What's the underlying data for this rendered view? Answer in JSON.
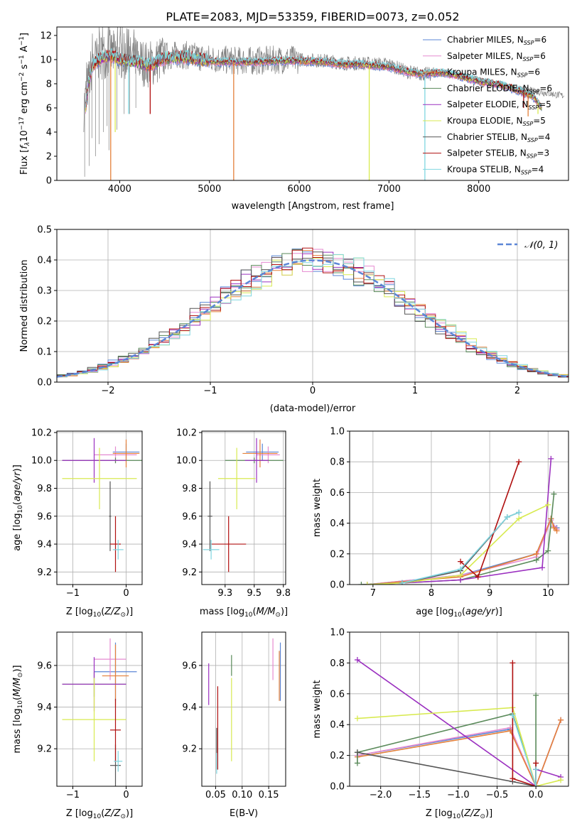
{
  "figure": {
    "title": "PLATE=2083, MJD=53359, FIBERID=0073, z=0.052"
  },
  "series_styles": [
    {
      "name": "Chabrier MILES",
      "label": "Chabrier MILES, N_SSP=6",
      "color": "#5b86d6"
    },
    {
      "name": "Salpeter MILES",
      "label": "Salpeter MILES, N_SSP=6",
      "color": "#e58ad0"
    },
    {
      "name": "Kroupa MILES",
      "label": "Kroupa MILES, N_SSP=6",
      "color": "#e4803a"
    },
    {
      "name": "Chabrier ELODIE",
      "label": "Chabrier ELODIE, N_SSP=6",
      "color": "#5a8a5a"
    },
    {
      "name": "Salpeter ELODIE",
      "label": "Salpeter ELODIE, N_SSP=5",
      "color": "#9b30c0"
    },
    {
      "name": "Kroupa ELODIE",
      "label": "Kroupa ELODIE, N_SSP=5",
      "color": "#d8ea50"
    },
    {
      "name": "Chabrier STELIB",
      "label": "Chabrier STELIB, N_SSP=4",
      "color": "#555555"
    },
    {
      "name": "Salpeter STELIB",
      "label": "Salpeter STELIB, N_SSP=3",
      "color": "#b01010"
    },
    {
      "name": "Kroupa STELIB",
      "label": "Kroupa STELIB, N_SSP=4",
      "color": "#7fd6e0"
    }
  ],
  "chart_data": [
    {
      "id": "spectrum",
      "type": "line",
      "title": "PLATE=2083, MJD=53359, FIBERID=0073, z=0.052",
      "xlabel": "wavelength [Angstrom, rest frame]",
      "ylabel": "Flux [f_λ10^-17 erg cm^-2 s^-1 A^-1]",
      "xlim": [
        3300,
        9000
      ],
      "ylim": [
        0,
        12.7
      ],
      "xticks": [
        4000,
        5000,
        6000,
        7000,
        8000
      ],
      "yticks": [
        0,
        2,
        4,
        6,
        8,
        10,
        12
      ],
      "grid": false,
      "legend": "top-right",
      "data_color": "#808080",
      "data": [
        [
          3600,
          6.0
        ],
        [
          3650,
          8.0
        ],
        [
          3700,
          9.8
        ],
        [
          3800,
          10.3
        ],
        [
          3900,
          10.5
        ],
        [
          4000,
          10.4
        ],
        [
          4100,
          10.0
        ],
        [
          4200,
          10.0
        ],
        [
          4300,
          9.6
        ],
        [
          4400,
          9.8
        ],
        [
          4500,
          10.3
        ],
        [
          4700,
          10.4
        ],
        [
          4900,
          10.2
        ],
        [
          5100,
          10.0
        ],
        [
          5300,
          9.9
        ],
        [
          5500,
          9.9
        ],
        [
          5800,
          10.0
        ],
        [
          6000,
          10.0
        ],
        [
          6300,
          9.9
        ],
        [
          6500,
          9.7
        ],
        [
          6700,
          9.7
        ],
        [
          7000,
          9.6
        ],
        [
          7200,
          9.0
        ],
        [
          7400,
          8.8
        ],
        [
          7600,
          8.8
        ],
        [
          7700,
          8.8
        ],
        [
          7900,
          8.5
        ],
        [
          8200,
          8.0
        ],
        [
          8500,
          7.5
        ],
        [
          8700,
          7.3
        ],
        [
          8950,
          7.0
        ]
      ],
      "model": [
        [
          3620,
          6.0
        ],
        [
          3650,
          8.0
        ],
        [
          3700,
          9.5
        ],
        [
          3800,
          10.2
        ],
        [
          3900,
          10.3
        ],
        [
          4000,
          10.0
        ],
        [
          4100,
          9.9
        ],
        [
          4200,
          9.8
        ],
        [
          4300,
          9.5
        ],
        [
          4400,
          9.7
        ],
        [
          4500,
          10.1
        ],
        [
          4700,
          10.2
        ],
        [
          4900,
          10.0
        ],
        [
          5100,
          9.8
        ],
        [
          5300,
          9.8
        ],
        [
          5500,
          9.8
        ],
        [
          5800,
          9.9
        ],
        [
          6000,
          9.9
        ],
        [
          6300,
          9.8
        ],
        [
          6500,
          9.6
        ],
        [
          6700,
          9.6
        ],
        [
          7000,
          9.4
        ],
        [
          7200,
          9.0
        ],
        [
          7400,
          8.8
        ],
        [
          7500,
          8.9
        ],
        [
          7600,
          8.9
        ],
        [
          7800,
          8.6
        ],
        [
          8000,
          8.2
        ],
        [
          8300,
          7.8
        ],
        [
          8600,
          7.0
        ],
        [
          8700,
          6.0
        ]
      ],
      "dips": [
        [
          3900,
          0.0
        ],
        [
          3950,
          4.0
        ],
        [
          4100,
          5.5
        ],
        [
          4340,
          5.5
        ],
        [
          5270,
          0.0
        ],
        [
          6780,
          0.0
        ],
        [
          7400,
          0.0
        ],
        [
          8500,
          6.0
        ],
        [
          8550,
          5.3
        ],
        [
          8660,
          5.5
        ]
      ]
    },
    {
      "id": "residuals",
      "type": "bar",
      "xlabel": "(data-model)/error",
      "ylabel": "Normed distribution",
      "xlim": [
        -2.5,
        2.5
      ],
      "ylim": [
        0,
        0.5
      ],
      "xticks": [
        -2,
        -1,
        0,
        1,
        2
      ],
      "yticks": [
        0.0,
        0.1,
        0.2,
        0.3,
        0.4,
        0.5
      ],
      "grid": true,
      "legend": "top-right",
      "legend_label": "N(0,1)",
      "legend_color": "#5b86d6",
      "bin_width": 0.1
    },
    {
      "id": "z-age",
      "type": "scatter",
      "xlabel": "Z [log10(Z/Z_sun)]",
      "ylabel": "age [log10(age/yr)]",
      "xlim": [
        -1.3,
        0.3
      ],
      "ylim": [
        9.11,
        10.21
      ],
      "xticks": [
        -1,
        0
      ],
      "yticks": [
        9.2,
        9.4,
        9.6,
        9.8,
        10.0,
        10.2
      ],
      "grid": true,
      "points": [
        {
          "series": "Chabrier MILES",
          "x": 0.0,
          "y": 10.06,
          "xerr": 0.25,
          "yerr": 0.06
        },
        {
          "series": "Salpeter MILES",
          "x": -0.2,
          "y": 10.04,
          "xerr": 0.4,
          "yerr": 0.06
        },
        {
          "series": "Kroupa MILES",
          "x": 0.0,
          "y": 10.05,
          "xerr": 0.25,
          "yerr": 0.1
        },
        {
          "series": "Chabrier ELODIE",
          "x": -0.2,
          "y": 10.0,
          "xerr": 1.0,
          "yerr": 0.02
        },
        {
          "series": "Salpeter ELODIE",
          "x": -0.6,
          "y": 10.0,
          "xerr": 0.6,
          "yerr": 0.16
        },
        {
          "series": "Kroupa ELODIE",
          "x": -0.5,
          "y": 9.87,
          "xerr": 0.7,
          "yerr": 0.22
        },
        {
          "series": "Chabrier STELIB",
          "x": -0.3,
          "y": 9.6,
          "xerr": 0.02,
          "yerr": 0.25
        },
        {
          "series": "Salpeter STELIB",
          "x": -0.2,
          "y": 9.4,
          "xerr": 0.1,
          "yerr": 0.2
        },
        {
          "series": "Kroupa STELIB",
          "x": -0.15,
          "y": 9.36,
          "xerr": 0.1,
          "yerr": 0.07
        }
      ]
    },
    {
      "id": "mass-age",
      "type": "scatter",
      "xlabel": "mass [log10(M/M_sun)]",
      "ylabel": "",
      "xlim": [
        9.05,
        9.77
      ],
      "ylim": [
        9.11,
        10.21
      ],
      "xticks": [
        9.25,
        9.5,
        9.75
      ],
      "yticks": [
        9.2,
        9.4,
        9.6,
        9.8,
        10.0,
        10.2
      ],
      "grid": true,
      "points": [
        {
          "series": "Chabrier MILES",
          "x": 9.57,
          "y": 10.06,
          "xerr": 0.14,
          "yerr": 0.06
        },
        {
          "series": "Salpeter MILES",
          "x": 9.62,
          "y": 10.04,
          "xerr": 0.1,
          "yerr": 0.06
        },
        {
          "series": "Kroupa MILES",
          "x": 9.55,
          "y": 10.05,
          "xerr": 0.15,
          "yerr": 0.1
        },
        {
          "series": "Chabrier ELODIE",
          "x": 9.5,
          "y": 10.0,
          "xerr": 0.25,
          "yerr": 0.02
        },
        {
          "series": "Salpeter ELODIE",
          "x": 9.52,
          "y": 10.0,
          "xerr": 0.1,
          "yerr": 0.16
        },
        {
          "series": "Kroupa ELODIE",
          "x": 9.35,
          "y": 9.87,
          "xerr": 0.16,
          "yerr": 0.22
        },
        {
          "series": "Chabrier STELIB",
          "x": 9.12,
          "y": 9.6,
          "xerr": 0.02,
          "yerr": 0.25
        },
        {
          "series": "Salpeter STELIB",
          "x": 9.28,
          "y": 9.4,
          "xerr": 0.15,
          "yerr": 0.2
        },
        {
          "series": "Kroupa STELIB",
          "x": 9.13,
          "y": 9.36,
          "xerr": 0.07,
          "yerr": 0.07
        }
      ]
    },
    {
      "id": "age-weight",
      "type": "line",
      "xlabel": "age [log10(age/yr)]",
      "ylabel": "mass weight",
      "xlim": [
        6.6,
        10.35
      ],
      "ylim": [
        0,
        1
      ],
      "xticks": [
        7,
        8,
        9,
        10
      ],
      "yticks": [
        0.0,
        0.2,
        0.4,
        0.6,
        0.8,
        1.0
      ],
      "grid": true,
      "series": [
        {
          "name": "Chabrier MILES",
          "x": [
            6.9,
            8.5,
            9.8,
            10.05,
            10.1,
            10.15
          ],
          "y": [
            0.0,
            0.06,
            0.2,
            0.43,
            0.38,
            0.37
          ]
        },
        {
          "name": "Salpeter MILES",
          "x": [
            6.9,
            8.5,
            9.8,
            10.05,
            10.1,
            10.15
          ],
          "y": [
            0.0,
            0.06,
            0.18,
            0.42,
            0.38,
            0.36
          ]
        },
        {
          "name": "Kroupa MILES",
          "x": [
            6.9,
            8.5,
            9.8,
            10.05,
            10.1,
            10.15
          ],
          "y": [
            0.0,
            0.05,
            0.2,
            0.43,
            0.37,
            0.35
          ]
        },
        {
          "name": "Chabrier ELODIE",
          "x": [
            6.8,
            7.5,
            8.5,
            9.8,
            10.0,
            10.1
          ],
          "y": [
            0.0,
            0.01,
            0.03,
            0.16,
            0.22,
            0.59
          ]
        },
        {
          "name": "Salpeter ELODIE",
          "x": [
            6.9,
            7.5,
            8.5,
            9.9,
            10.05
          ],
          "y": [
            0.0,
            0.01,
            0.03,
            0.11,
            0.82
          ]
        },
        {
          "name": "Kroupa ELODIE",
          "x": [
            6.9,
            7.5,
            8.5,
            9.5,
            10.0
          ],
          "y": [
            0.0,
            0.01,
            0.06,
            0.43,
            0.52
          ]
        },
        {
          "name": "Chabrier STELIB",
          "x": [
            7.5,
            8.5,
            9.3,
            9.5
          ],
          "y": [
            0.01,
            0.09,
            0.44,
            0.47
          ]
        },
        {
          "name": "Salpeter STELIB",
          "x": [
            8.5,
            8.8,
            9.5
          ],
          "y": [
            0.15,
            0.05,
            0.8
          ]
        },
        {
          "name": "Kroupa STELIB",
          "x": [
            7.5,
            8.5,
            9.3,
            9.5
          ],
          "y": [
            0.01,
            0.1,
            0.44,
            0.47
          ]
        }
      ]
    },
    {
      "id": "z-mass",
      "type": "scatter",
      "xlabel": "Z [log10(Z/Z_sun)]",
      "ylabel": "mass [log10(M/M_sun)]",
      "xlim": [
        -1.3,
        0.3
      ],
      "ylim": [
        9.02,
        9.76
      ],
      "xticks": [
        -1,
        0
      ],
      "yticks": [
        9.2,
        9.4,
        9.6
      ],
      "grid": true,
      "points": [
        {
          "series": "Chabrier MILES",
          "x": -0.2,
          "y": 9.57,
          "xerr": 0.4,
          "yerr": 0.14
        },
        {
          "series": "Salpeter MILES",
          "x": -0.3,
          "y": 9.63,
          "xerr": 0.3,
          "yerr": 0.1
        },
        {
          "series": "Kroupa MILES",
          "x": -0.2,
          "y": 9.55,
          "xerr": 0.25,
          "yerr": 0.15
        },
        {
          "series": "Chabrier ELODIE",
          "x": -0.6,
          "y": 9.51,
          "xerr": 0.6,
          "yerr": 0.06
        },
        {
          "series": "Salpeter ELODIE",
          "x": -0.6,
          "y": 9.51,
          "xerr": 0.6,
          "yerr": 0.13
        },
        {
          "series": "Kroupa ELODIE",
          "x": -0.6,
          "y": 9.34,
          "xerr": 0.6,
          "yerr": 0.2
        },
        {
          "series": "Chabrier STELIB",
          "x": -0.2,
          "y": 9.12,
          "xerr": 0.1,
          "yerr": 0.1
        },
        {
          "series": "Salpeter STELIB",
          "x": -0.2,
          "y": 9.29,
          "xerr": 0.1,
          "yerr": 0.15
        },
        {
          "series": "Kroupa STELIB",
          "x": -0.15,
          "y": 9.14,
          "xerr": 0.08,
          "yerr": 0.05
        }
      ]
    },
    {
      "id": "ebv-mass",
      "type": "scatter",
      "xlabel": "E(B-V)",
      "ylabel": "",
      "xlim": [
        0.024,
        0.182
      ],
      "ylim": [
        9.02,
        9.76
      ],
      "xticks": [
        0.05,
        0.1,
        0.15
      ],
      "yticks": [
        9.2,
        9.4,
        9.6
      ],
      "grid": true,
      "points": [
        {
          "series": "Chabrier MILES",
          "x": 0.172,
          "y": 9.57,
          "xerr": 0.0,
          "yerr": 0.14
        },
        {
          "series": "Salpeter MILES",
          "x": 0.158,
          "y": 9.63,
          "xerr": 0.0,
          "yerr": 0.1
        },
        {
          "series": "Kroupa MILES",
          "x": 0.17,
          "y": 9.55,
          "xerr": 0.0,
          "yerr": 0.12
        },
        {
          "series": "Chabrier ELODIE",
          "x": 0.08,
          "y": 9.6,
          "xerr": 0.0,
          "yerr": 0.05
        },
        {
          "series": "Salpeter ELODIE",
          "x": 0.037,
          "y": 9.51,
          "xerr": 0.0,
          "yerr": 0.1
        },
        {
          "series": "Kroupa ELODIE",
          "x": 0.08,
          "y": 9.34,
          "xerr": 0.0,
          "yerr": 0.2
        },
        {
          "series": "Chabrier STELIB",
          "x": 0.052,
          "y": 9.2,
          "xerr": 0.0,
          "yerr": 0.1
        },
        {
          "series": "Salpeter STELIB",
          "x": 0.054,
          "y": 9.3,
          "xerr": 0.0,
          "yerr": 0.2
        },
        {
          "series": "Kroupa STELIB",
          "x": 0.052,
          "y": 9.13,
          "xerr": 0.0,
          "yerr": 0.05
        }
      ]
    },
    {
      "id": "z-weight",
      "type": "line",
      "xlabel": "Z [log10(Z/Z_sun)]",
      "ylabel": "mass weight",
      "xlim": [
        -2.4,
        0.42
      ],
      "ylim": [
        0,
        1
      ],
      "xticks": [
        -2.0,
        -1.5,
        -1.0,
        -0.5,
        0.0
      ],
      "yticks": [
        0.0,
        0.2,
        0.4,
        0.6,
        0.8,
        1.0
      ],
      "grid": true,
      "series": [
        {
          "name": "Chabrier MILES",
          "x": [
            -2.3,
            -0.33,
            0.0,
            0.32
          ],
          "y": [
            0.2,
            0.37,
            0.0,
            0.43
          ]
        },
        {
          "name": "Salpeter MILES",
          "x": [
            -2.3,
            -0.33,
            0.0,
            0.32
          ],
          "y": [
            0.2,
            0.38,
            0.0,
            0.43
          ]
        },
        {
          "name": "Kroupa MILES",
          "x": [
            -2.3,
            -0.33,
            0.0,
            0.32
          ],
          "y": [
            0.19,
            0.36,
            0.0,
            0.43
          ]
        },
        {
          "name": "Chabrier ELODIE",
          "x": [
            -2.3,
            -2.3,
            -0.3,
            0.0,
            0.0
          ],
          "y": [
            0.15,
            0.22,
            0.47,
            0.0,
            0.59
          ]
        },
        {
          "name": "Salpeter ELODIE",
          "x": [
            -2.3,
            0.0,
            0.0,
            0.32
          ],
          "y": [
            0.82,
            0.0,
            0.11,
            0.06
          ]
        },
        {
          "name": "Kroupa ELODIE",
          "x": [
            -2.3,
            -0.3,
            0.0,
            0.32
          ],
          "y": [
            0.44,
            0.51,
            0.0,
            0.04
          ]
        },
        {
          "name": "Chabrier STELIB",
          "x": [
            -2.3,
            -0.3,
            0.0,
            0.0
          ],
          "y": [
            0.22,
            0.03,
            0.0,
            0.11
          ]
        },
        {
          "name": "Salpeter STELIB",
          "x": [
            -0.3,
            -0.3,
            0.0,
            0.0
          ],
          "y": [
            0.8,
            0.05,
            0.0,
            0.15
          ]
        },
        {
          "name": "Kroupa STELIB",
          "x": [
            -0.3,
            0.0,
            0.0
          ],
          "y": [
            0.46,
            0.0,
            0.11
          ]
        }
      ]
    }
  ]
}
